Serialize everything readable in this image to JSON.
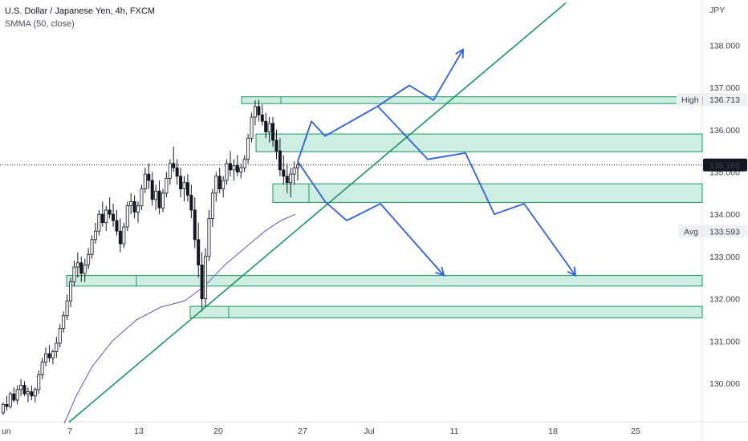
{
  "header": {
    "title": "U.S. Dollar / Japanese Yen, 4h, FXCM",
    "indicator": "SMMA (50, close)"
  },
  "colors": {
    "up": "#131722",
    "down": "#131722",
    "zone_fill": "#cfeee3",
    "zone_stroke": "#17965c",
    "trendline": "#17965c",
    "arrows": "#2f5fe0",
    "smma": "#6a52b8",
    "price_badge_bg": "#131722",
    "price_badge_fg": "#ffffff",
    "badge_bg": "#eef0f3"
  },
  "chart_data": {
    "type": "candlestick",
    "symbol": "U.S. Dollar / Japanese Yen",
    "timeframe": "4h",
    "source": "FXCM",
    "currency": "JPY",
    "ylim": [
      129.1,
      139.0
    ],
    "y_ticks": [
      "130.000",
      "131.000",
      "132.000",
      "133.000",
      "134.000",
      "135.000",
      "136.000",
      "137.000",
      "138.000"
    ],
    "x_ticks": [
      "Jun",
      "7",
      "13",
      "20",
      "27",
      "Jul",
      "11",
      "18",
      "25"
    ],
    "current_price": "135.165",
    "high": {
      "label": "High",
      "value": "136.713"
    },
    "avg": {
      "label": "Avg",
      "value": "133.593"
    },
    "candles": [
      [
        129.3,
        129.55,
        129.25,
        129.5
      ],
      [
        129.5,
        129.7,
        129.35,
        129.45
      ],
      [
        129.45,
        129.8,
        129.4,
        129.75
      ],
      [
        129.75,
        129.9,
        129.55,
        129.6
      ],
      [
        129.6,
        129.95,
        129.5,
        129.85
      ],
      [
        129.85,
        130.1,
        129.7,
        129.95
      ],
      [
        129.95,
        130.05,
        129.7,
        129.75
      ],
      [
        129.75,
        129.9,
        129.55,
        129.8
      ],
      [
        129.8,
        129.95,
        129.6,
        129.7
      ],
      [
        129.7,
        129.9,
        129.55,
        129.85
      ],
      [
        129.85,
        130.3,
        129.75,
        130.2
      ],
      [
        130.2,
        130.6,
        130.1,
        130.5
      ],
      [
        130.5,
        130.85,
        130.4,
        130.7
      ],
      [
        130.7,
        130.9,
        130.5,
        130.6
      ],
      [
        130.6,
        130.8,
        130.45,
        130.75
      ],
      [
        130.75,
        131.1,
        130.6,
        130.95
      ],
      [
        130.95,
        131.4,
        130.85,
        131.3
      ],
      [
        131.3,
        131.7,
        131.2,
        131.6
      ],
      [
        131.6,
        132.1,
        131.5,
        131.95
      ],
      [
        131.95,
        132.5,
        131.8,
        132.4
      ],
      [
        132.4,
        132.9,
        132.3,
        132.75
      ],
      [
        132.75,
        133.1,
        132.5,
        132.85
      ],
      [
        132.85,
        133.0,
        132.4,
        132.6
      ],
      [
        132.6,
        132.95,
        132.4,
        132.8
      ],
      [
        132.8,
        133.2,
        132.7,
        133.05
      ],
      [
        133.05,
        133.5,
        132.95,
        133.4
      ],
      [
        133.4,
        133.8,
        133.3,
        133.6
      ],
      [
        133.6,
        134.1,
        133.5,
        134.0
      ],
      [
        134.0,
        134.3,
        133.7,
        133.8
      ],
      [
        133.8,
        134.2,
        133.6,
        134.1
      ],
      [
        134.1,
        134.4,
        133.9,
        134.0
      ],
      [
        134.0,
        134.25,
        133.7,
        133.85
      ],
      [
        133.85,
        134.1,
        133.5,
        133.6
      ],
      [
        133.6,
        133.9,
        133.1,
        133.3
      ],
      [
        133.3,
        133.8,
        133.2,
        133.7
      ],
      [
        133.7,
        134.3,
        133.6,
        134.2
      ],
      [
        134.2,
        134.5,
        134.0,
        134.3
      ],
      [
        134.3,
        134.45,
        133.9,
        134.05
      ],
      [
        134.05,
        134.3,
        133.8,
        134.2
      ],
      [
        134.2,
        134.7,
        134.1,
        134.6
      ],
      [
        134.6,
        135.1,
        134.5,
        134.95
      ],
      [
        134.95,
        135.2,
        134.6,
        134.8
      ],
      [
        134.8,
        135.0,
        134.2,
        134.35
      ],
      [
        134.35,
        134.7,
        134.1,
        134.55
      ],
      [
        134.55,
        134.8,
        134.0,
        134.15
      ],
      [
        134.15,
        134.6,
        134.05,
        134.5
      ],
      [
        134.5,
        135.0,
        134.4,
        134.85
      ],
      [
        134.85,
        135.3,
        134.7,
        135.2
      ],
      [
        135.2,
        135.6,
        135.0,
        135.1
      ],
      [
        135.1,
        135.3,
        134.7,
        134.9
      ],
      [
        134.9,
        135.1,
        134.4,
        134.6
      ],
      [
        134.6,
        134.9,
        134.3,
        134.75
      ],
      [
        134.75,
        134.95,
        134.3,
        134.45
      ],
      [
        134.45,
        134.7,
        133.9,
        134.1
      ],
      [
        134.1,
        134.4,
        133.2,
        133.4
      ],
      [
        133.4,
        133.8,
        132.5,
        132.8
      ],
      [
        132.8,
        133.1,
        131.7,
        132.0
      ],
      [
        132.0,
        133.2,
        131.8,
        133.0
      ],
      [
        133.0,
        134.1,
        132.9,
        133.9
      ],
      [
        133.9,
        134.6,
        133.7,
        134.5
      ],
      [
        134.5,
        135.0,
        134.3,
        134.9
      ],
      [
        134.9,
        135.1,
        134.5,
        134.6
      ],
      [
        134.6,
        134.9,
        134.4,
        134.8
      ],
      [
        134.8,
        135.3,
        134.7,
        135.2
      ],
      [
        135.2,
        135.5,
        134.9,
        135.05
      ],
      [
        135.05,
        135.3,
        134.8,
        135.15
      ],
      [
        135.15,
        135.4,
        134.9,
        135.0
      ],
      [
        135.0,
        135.2,
        134.85,
        135.1
      ],
      [
        135.1,
        135.4,
        135.0,
        135.3
      ],
      [
        135.3,
        135.9,
        135.2,
        135.8
      ],
      [
        135.8,
        136.4,
        135.7,
        136.3
      ],
      [
        136.3,
        136.7,
        136.1,
        136.55
      ],
      [
        136.55,
        136.71,
        136.2,
        136.35
      ],
      [
        136.35,
        136.6,
        136.1,
        136.2
      ],
      [
        136.2,
        136.4,
        135.8,
        135.95
      ],
      [
        135.95,
        136.3,
        135.7,
        136.15
      ],
      [
        136.15,
        136.3,
        135.6,
        135.75
      ],
      [
        135.75,
        136.0,
        135.3,
        135.5
      ],
      [
        135.5,
        135.8,
        134.9,
        135.05
      ],
      [
        135.05,
        135.4,
        134.7,
        134.9
      ],
      [
        134.9,
        135.2,
        134.5,
        134.75
      ],
      [
        134.75,
        135.1,
        134.4,
        134.95
      ],
      [
        134.95,
        135.25,
        134.7,
        135.1
      ],
      [
        135.1,
        135.3,
        134.8,
        135.165
      ]
    ],
    "smma": [
      [
        80,
        129.05
      ],
      [
        95,
        129.7
      ],
      [
        115,
        130.4
      ],
      [
        140,
        131.0
      ],
      [
        170,
        131.5
      ],
      [
        200,
        131.8
      ],
      [
        230,
        131.95
      ],
      [
        255,
        132.3
      ],
      [
        280,
        132.8
      ],
      [
        305,
        133.2
      ],
      [
        330,
        133.6
      ],
      [
        350,
        133.85
      ],
      [
        368,
        134.0
      ]
    ],
    "zones": [
      {
        "x0": 301,
        "x1": 875,
        "top": 136.78,
        "bottom": 136.62,
        "mid": 350
      },
      {
        "x0": 319,
        "x1": 875,
        "top": 135.9,
        "bottom": 135.48,
        "mid": 319
      },
      {
        "x0": 340,
        "x1": 875,
        "top": 134.72,
        "bottom": 134.28,
        "mid": 385
      },
      {
        "x0": 83,
        "x1": 875,
        "top": 132.55,
        "bottom": 132.3,
        "mid": 170
      },
      {
        "x0": 237,
        "x1": 875,
        "top": 131.82,
        "bottom": 131.55,
        "mid": 285
      }
    ],
    "trendline": [
      [
        86,
        129.08
      ],
      [
        705,
        139.0
      ]
    ],
    "arrows": [
      [
        [
          371,
          135.25
        ],
        [
          388,
          136.2
        ],
        [
          405,
          135.85
        ],
        [
          470,
          136.55
        ],
        [
          510,
          137.05
        ],
        [
          540,
          136.7
        ],
        [
          577,
          137.9
        ]
      ],
      [
        [
          371,
          135.25
        ],
        [
          405,
          134.3
        ],
        [
          432,
          133.85
        ],
        [
          474,
          134.25
        ],
        [
          553,
          132.55
        ]
      ],
      [
        [
          471,
          136.55
        ],
        [
          533,
          135.3
        ],
        [
          580,
          135.45
        ],
        [
          616,
          134.0
        ],
        [
          653,
          134.25
        ],
        [
          717,
          132.55
        ]
      ]
    ]
  }
}
